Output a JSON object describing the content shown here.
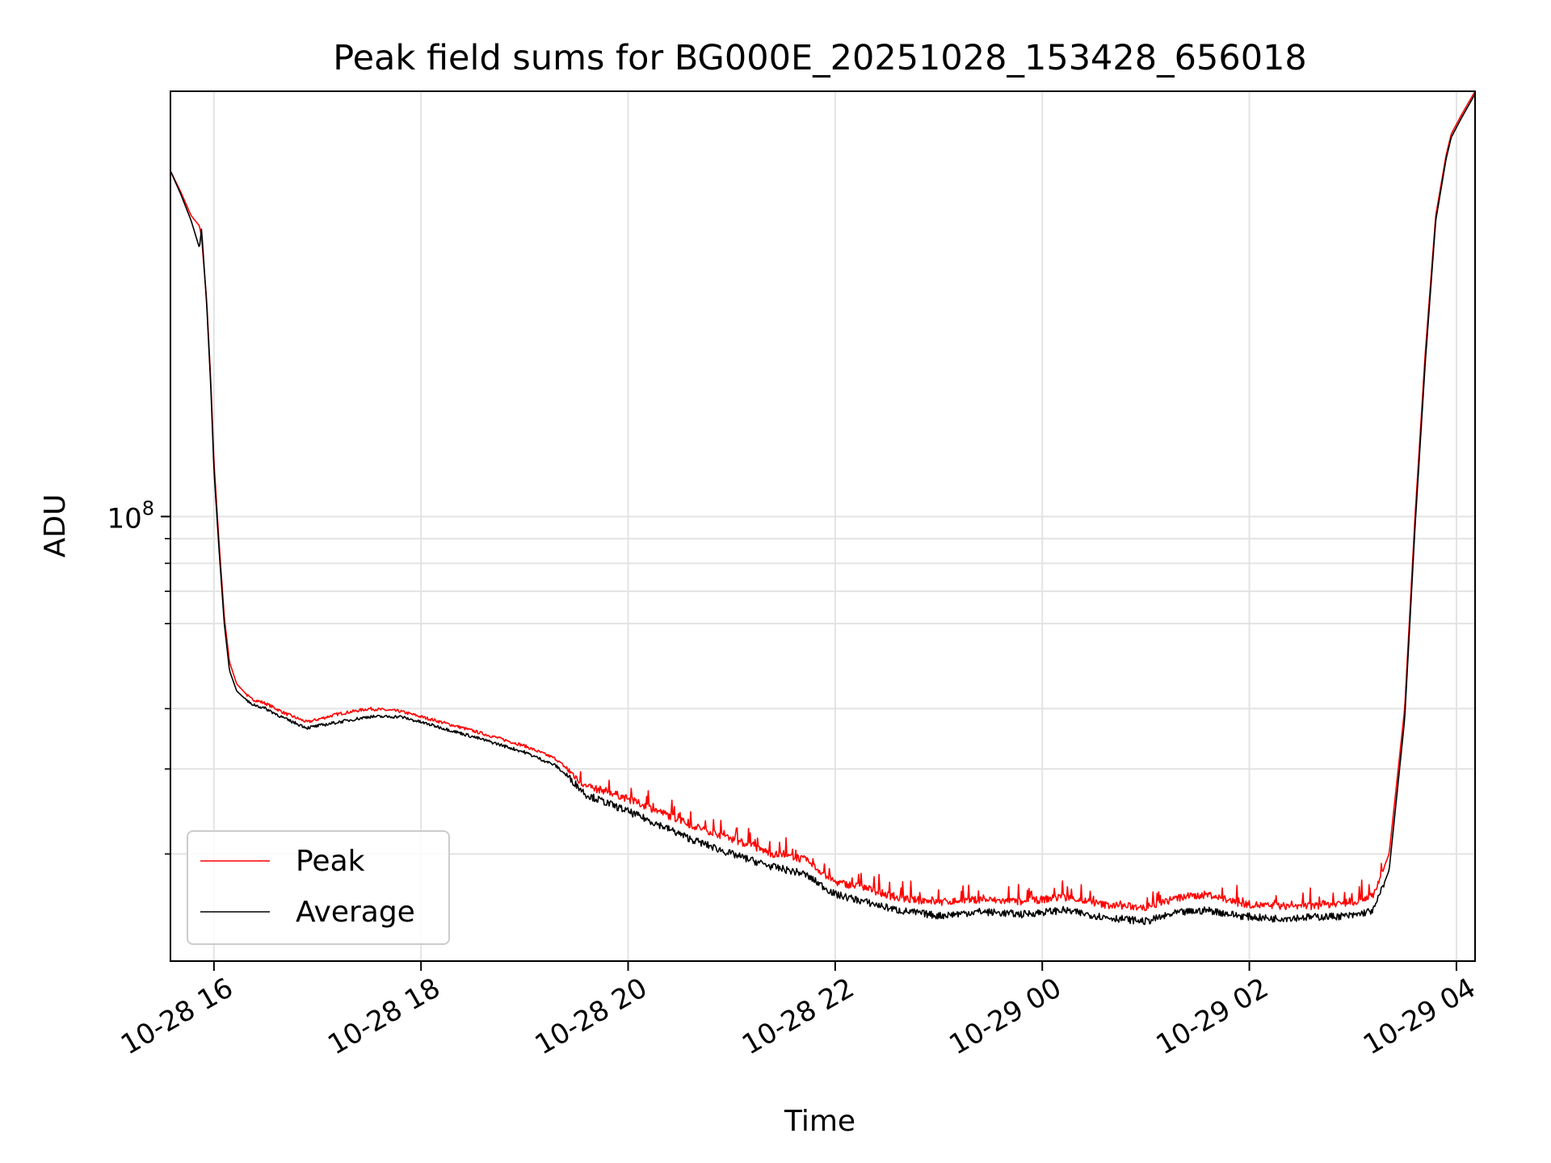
{
  "chart_data": {
    "type": "line",
    "title": "Peak field sums for BG000E_20251028_153428_656018",
    "xlabel": "Time",
    "ylabel": "ADU",
    "yscale": "log",
    "grid": true,
    "legend_position": "lower-left",
    "xlim_hours": [
      15.58,
      28.18
    ],
    "ylim": [
      12000000,
      760000000
    ],
    "x_ticks": [
      {
        "value": 16,
        "label": "10-28 16"
      },
      {
        "value": 18,
        "label": "10-28 18"
      },
      {
        "value": 20,
        "label": "10-28 20"
      },
      {
        "value": 22,
        "label": "10-28 22"
      },
      {
        "value": 24,
        "label": "10-29 00"
      },
      {
        "value": 26,
        "label": "10-29 02"
      },
      {
        "value": 28,
        "label": "10-29 04"
      }
    ],
    "y_ticks": [
      {
        "value": 100000000,
        "base": "10",
        "exp": "8"
      }
    ],
    "y_minor_ticks": [
      20000000,
      30000000,
      40000000,
      60000000,
      70000000,
      80000000,
      90000000
    ],
    "series": [
      {
        "name": "Peak",
        "color": "#ff0000",
        "x": [
          15.58,
          15.68,
          15.78,
          15.86,
          15.88,
          15.93,
          15.97,
          16.0,
          16.05,
          16.1,
          16.15,
          16.22,
          16.35,
          16.5,
          16.7,
          16.9,
          17.2,
          17.5,
          17.8,
          18.1,
          18.4,
          18.7,
          19.0,
          19.3,
          19.45,
          19.6,
          19.8,
          20.0,
          20.3,
          20.6,
          21.0,
          21.4,
          21.7,
          22.0,
          22.3,
          22.6,
          23.0,
          23.4,
          23.8,
          24.2,
          24.6,
          25.0,
          25.3,
          25.6,
          25.9,
          26.2,
          26.6,
          27.0,
          27.2,
          27.35,
          27.5,
          27.6,
          27.7,
          27.8,
          27.9,
          27.95,
          28.05,
          28.18
        ],
        "y": [
          520000000,
          470000000,
          420000000,
          400000000,
          380000000,
          280000000,
          190000000,
          130000000,
          88000000,
          62000000,
          50000000,
          45000000,
          42000000,
          41000000,
          39000000,
          37500000,
          39000000,
          40000000,
          39500000,
          38000000,
          36500000,
          35000000,
          33500000,
          31500000,
          29500000,
          27500000,
          27000000,
          26000000,
          24500000,
          23000000,
          21500000,
          20000000,
          19500000,
          17500000,
          17000000,
          16200000,
          15900000,
          16100000,
          15900000,
          16300000,
          15700000,
          15500000,
          16200000,
          16500000,
          15800000,
          15600000,
          15600000,
          15900000,
          16500000,
          20000000,
          40000000,
          100000000,
          220000000,
          420000000,
          560000000,
          620000000,
          680000000,
          760000000
        ]
      },
      {
        "name": "Average",
        "color": "#000000",
        "x": [
          15.58,
          15.68,
          15.78,
          15.86,
          15.88,
          15.93,
          15.97,
          16.0,
          16.05,
          16.1,
          16.15,
          16.22,
          16.35,
          16.5,
          16.7,
          16.9,
          17.2,
          17.5,
          17.8,
          18.1,
          18.4,
          18.7,
          19.0,
          19.3,
          19.45,
          19.6,
          19.8,
          20.0,
          20.3,
          20.6,
          21.0,
          21.4,
          21.7,
          22.0,
          22.3,
          22.6,
          23.0,
          23.4,
          23.8,
          24.2,
          24.6,
          25.0,
          25.3,
          25.6,
          25.9,
          26.2,
          26.6,
          27.0,
          27.2,
          27.35,
          27.5,
          27.6,
          27.7,
          27.8,
          27.9,
          27.95,
          28.05,
          28.18
        ],
        "y": [
          520000000,
          465000000,
          410000000,
          360000000,
          395000000,
          275000000,
          185000000,
          125000000,
          85000000,
          60000000,
          48000000,
          43500000,
          41000000,
          40000000,
          38000000,
          36500000,
          37500000,
          38500000,
          38500000,
          37000000,
          35500000,
          34000000,
          32500000,
          30500000,
          28500000,
          26500000,
          25500000,
          24500000,
          23000000,
          21500000,
          20000000,
          18800000,
          18200000,
          16500000,
          15900000,
          15300000,
          14900000,
          15200000,
          15000000,
          15300000,
          14800000,
          14500000,
          15100000,
          15300000,
          14900000,
          14700000,
          14800000,
          14900000,
          15300000,
          18500000,
          38000000,
          95000000,
          210000000,
          410000000,
          550000000,
          610000000,
          670000000,
          750000000
        ]
      }
    ]
  }
}
